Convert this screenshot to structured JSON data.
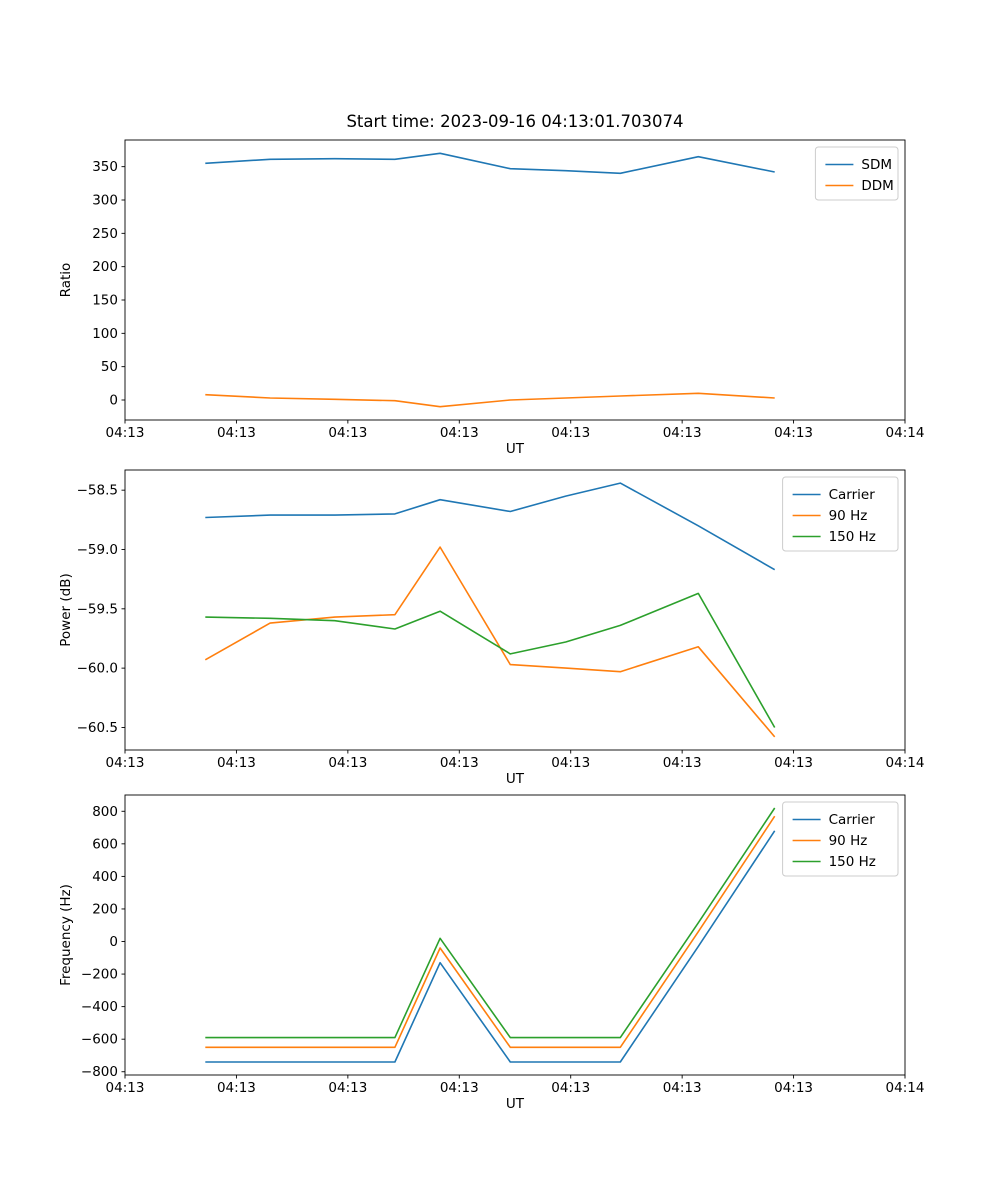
{
  "figure": {
    "background": "#ffffff"
  },
  "colors": {
    "blue": "#1f77b4",
    "orange": "#ff7f0e",
    "green": "#2ca02c",
    "frame": "#000000",
    "legend_border": "#cccccc"
  },
  "chart_data": [
    {
      "type": "line",
      "title": "Start time: 2023-09-16 04:13:01.703074",
      "xlabel": "UT",
      "ylabel": "Ratio",
      "xlim": [
        0,
        1
      ],
      "ylim": [
        -30,
        390
      ],
      "grid": false,
      "legend_position": "upper right",
      "x_tick_labels": [
        "04:13",
        "04:13",
        "04:13",
        "04:13",
        "04:13",
        "04:13",
        "04:13",
        "04:14"
      ],
      "y_tick_values": [
        0,
        50,
        100,
        150,
        200,
        250,
        300,
        350
      ],
      "y_tick_labels": [
        "0",
        "50",
        "100",
        "150",
        "200",
        "250",
        "300",
        "350"
      ],
      "x": [
        0.103,
        0.186,
        0.269,
        0.346,
        0.404,
        0.494,
        0.565,
        0.635,
        0.735,
        0.833
      ],
      "series": [
        {
          "name": "SDM",
          "color": "#1f77b4",
          "values": [
            355,
            361,
            362,
            361,
            370,
            347,
            344,
            340,
            365,
            342
          ]
        },
        {
          "name": "DDM",
          "color": "#ff7f0e",
          "values": [
            8,
            3,
            1,
            -1,
            -10,
            0,
            3,
            6,
            10,
            3
          ]
        }
      ]
    },
    {
      "type": "line",
      "title": "",
      "xlabel": "UT",
      "ylabel": "Power (dB)",
      "xlim": [
        0,
        1
      ],
      "ylim": [
        -60.69,
        -58.33
      ],
      "grid": false,
      "legend_position": "upper right",
      "x_tick_labels": [
        "04:13",
        "04:13",
        "04:13",
        "04:13",
        "04:13",
        "04:13",
        "04:13",
        "04:14"
      ],
      "y_tick_values": [
        -60.5,
        -60.0,
        -59.5,
        -59.0,
        -58.5
      ],
      "y_tick_labels": [
        "−60.5",
        "−60.0",
        "−59.5",
        "−59.0",
        "−58.5"
      ],
      "x": [
        0.103,
        0.186,
        0.269,
        0.346,
        0.404,
        0.494,
        0.565,
        0.635,
        0.735,
        0.833
      ],
      "series": [
        {
          "name": "Carrier",
          "color": "#1f77b4",
          "values": [
            -58.73,
            -58.71,
            -58.71,
            -58.7,
            -58.58,
            -58.68,
            -58.55,
            -58.44,
            -58.8,
            -59.17
          ]
        },
        {
          "name": "90 Hz",
          "color": "#ff7f0e",
          "values": [
            -59.93,
            -59.62,
            -59.57,
            -59.55,
            -58.98,
            -59.97,
            -60.0,
            -60.03,
            -59.82,
            -60.58
          ]
        },
        {
          "name": "150 Hz",
          "color": "#2ca02c",
          "values": [
            -59.57,
            -59.58,
            -59.6,
            -59.67,
            -59.52,
            -59.88,
            -59.78,
            -59.64,
            -59.37,
            -60.5
          ]
        }
      ]
    },
    {
      "type": "line",
      "title": "",
      "xlabel": "UT",
      "ylabel": "Frequency (Hz)",
      "xlim": [
        0,
        1
      ],
      "ylim": [
        -820,
        900
      ],
      "grid": false,
      "legend_position": "upper right",
      "x_tick_labels": [
        "04:13",
        "04:13",
        "04:13",
        "04:13",
        "04:13",
        "04:13",
        "04:13",
        "04:14"
      ],
      "y_tick_values": [
        -800,
        -600,
        -400,
        -200,
        0,
        200,
        400,
        600,
        800
      ],
      "y_tick_labels": [
        "−800",
        "−600",
        "−400",
        "−200",
        "0",
        "200",
        "400",
        "600",
        "800"
      ],
      "x": [
        0.103,
        0.186,
        0.269,
        0.346,
        0.404,
        0.494,
        0.565,
        0.635,
        0.735,
        0.833
      ],
      "series": [
        {
          "name": "Carrier",
          "color": "#1f77b4",
          "values": [
            -740,
            -740,
            -740,
            -740,
            -130,
            -740,
            -740,
            -740,
            -30,
            680
          ]
        },
        {
          "name": "90 Hz",
          "color": "#ff7f0e",
          "values": [
            -650,
            -650,
            -650,
            -650,
            -40,
            -650,
            -650,
            -650,
            60,
            770
          ]
        },
        {
          "name": "150 Hz",
          "color": "#2ca02c",
          "values": [
            -590,
            -590,
            -590,
            -590,
            20,
            -590,
            -590,
            -590,
            115,
            820
          ]
        }
      ]
    }
  ]
}
